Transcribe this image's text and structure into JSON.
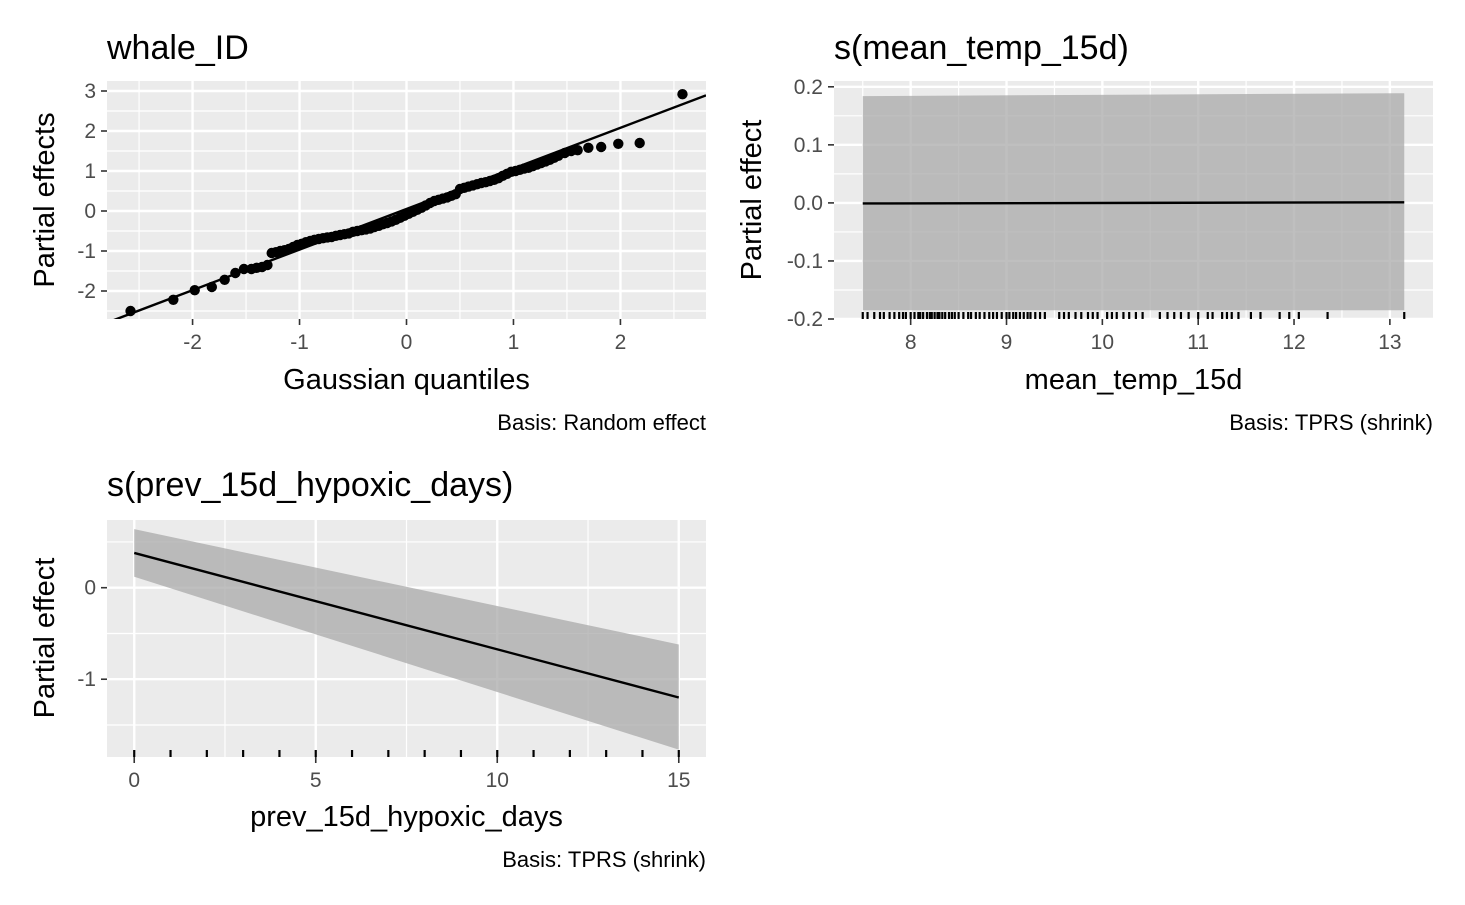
{
  "chart_data": [
    {
      "type": "scatter",
      "title": "whale_ID",
      "xlabel": "Gaussian quantiles",
      "ylabel": "Partial effects",
      "caption": "Basis: Random effect",
      "xlim": [
        -2.8,
        2.8
      ],
      "ylim": [
        -2.7,
        3.25
      ],
      "x_ticks": [
        -2,
        -1,
        0,
        1,
        2
      ],
      "x_tick_labels": [
        "-2",
        "-1",
        "0",
        "1",
        "2"
      ],
      "y_ticks": [
        -2,
        -1,
        0,
        1,
        2,
        3
      ],
      "y_tick_labels": [
        "-2",
        "-1",
        "0",
        "1",
        "2",
        "3"
      ],
      "grid": true,
      "reference_line": {
        "slope": 1.015,
        "intercept": 0.05
      },
      "points": [
        [
          -2.58,
          -2.5
        ],
        [
          -2.18,
          -2.22
        ],
        [
          -1.98,
          -1.98
        ],
        [
          -1.82,
          -1.9
        ],
        [
          -1.7,
          -1.72
        ],
        [
          -1.6,
          -1.55
        ],
        [
          -1.52,
          -1.45
        ],
        [
          -1.45,
          -1.45
        ],
        [
          -1.4,
          -1.42
        ],
        [
          -1.35,
          -1.4
        ],
        [
          -1.3,
          -1.35
        ],
        [
          -1.26,
          -1.05
        ],
        [
          -1.22,
          -1.03
        ],
        [
          -1.18,
          -1.0
        ],
        [
          -1.14,
          -0.98
        ],
        [
          -1.1,
          -0.95
        ],
        [
          -1.06,
          -0.9
        ],
        [
          -1.02,
          -0.85
        ],
        [
          -0.98,
          -0.82
        ],
        [
          -0.94,
          -0.78
        ],
        [
          -0.9,
          -0.75
        ],
        [
          -0.86,
          -0.72
        ],
        [
          -0.82,
          -0.7
        ],
        [
          -0.78,
          -0.68
        ],
        [
          -0.74,
          -0.66
        ],
        [
          -0.7,
          -0.65
        ],
        [
          -0.66,
          -0.62
        ],
        [
          -0.62,
          -0.6
        ],
        [
          -0.58,
          -0.58
        ],
        [
          -0.54,
          -0.56
        ],
        [
          -0.5,
          -0.52
        ],
        [
          -0.46,
          -0.5
        ],
        [
          -0.42,
          -0.48
        ],
        [
          -0.38,
          -0.46
        ],
        [
          -0.34,
          -0.44
        ],
        [
          -0.3,
          -0.4
        ],
        [
          -0.26,
          -0.37
        ],
        [
          -0.22,
          -0.33
        ],
        [
          -0.18,
          -0.3
        ],
        [
          -0.14,
          -0.26
        ],
        [
          -0.1,
          -0.22
        ],
        [
          -0.06,
          -0.17
        ],
        [
          -0.02,
          -0.12
        ],
        [
          0.02,
          -0.07
        ],
        [
          0.06,
          -0.02
        ],
        [
          0.1,
          0.03
        ],
        [
          0.14,
          0.08
        ],
        [
          0.18,
          0.14
        ],
        [
          0.22,
          0.2
        ],
        [
          0.26,
          0.25
        ],
        [
          0.3,
          0.28
        ],
        [
          0.34,
          0.31
        ],
        [
          0.38,
          0.34
        ],
        [
          0.42,
          0.38
        ],
        [
          0.46,
          0.42
        ],
        [
          0.5,
          0.55
        ],
        [
          0.54,
          0.58
        ],
        [
          0.58,
          0.61
        ],
        [
          0.62,
          0.64
        ],
        [
          0.66,
          0.67
        ],
        [
          0.7,
          0.7
        ],
        [
          0.74,
          0.72
        ],
        [
          0.78,
          0.75
        ],
        [
          0.82,
          0.78
        ],
        [
          0.86,
          0.82
        ],
        [
          0.9,
          0.88
        ],
        [
          0.94,
          0.93
        ],
        [
          0.98,
          0.98
        ],
        [
          1.02,
          1.0
        ],
        [
          1.06,
          1.03
        ],
        [
          1.1,
          1.06
        ],
        [
          1.14,
          1.08
        ],
        [
          1.18,
          1.12
        ],
        [
          1.22,
          1.16
        ],
        [
          1.26,
          1.2
        ],
        [
          1.3,
          1.24
        ],
        [
          1.34,
          1.28
        ],
        [
          1.38,
          1.33
        ],
        [
          1.42,
          1.38
        ],
        [
          1.48,
          1.45
        ],
        [
          1.54,
          1.5
        ],
        [
          1.6,
          1.52
        ],
        [
          1.7,
          1.58
        ],
        [
          1.82,
          1.6
        ],
        [
          1.98,
          1.68
        ],
        [
          2.18,
          1.7
        ],
        [
          2.58,
          2.92
        ]
      ]
    },
    {
      "type": "line",
      "title": "s(mean_temp_15d)",
      "xlabel": "mean_temp_15d",
      "ylabel": "Partial effect",
      "caption": "Basis: TPRS (shrink)",
      "xlim": [
        7.2,
        13.45
      ],
      "ylim": [
        -0.2,
        0.21
      ],
      "x_ticks": [
        8,
        9,
        10,
        11,
        12,
        13
      ],
      "x_tick_labels": [
        "8",
        "9",
        "10",
        "11",
        "12",
        "13"
      ],
      "y_ticks": [
        -0.2,
        -0.1,
        0.0,
        0.1,
        0.2
      ],
      "y_tick_labels": [
        "-0.2",
        "-0.1",
        "0.0",
        "0.1",
        "0.2"
      ],
      "grid": true,
      "x": [
        7.5,
        13.15
      ],
      "fit": [
        -0.001,
        0.001
      ],
      "lower": [
        -0.185,
        -0.185
      ],
      "upper": [
        0.184,
        0.189
      ],
      "rug": [
        7.5,
        7.55,
        7.62,
        7.68,
        7.72,
        7.78,
        7.83,
        7.88,
        7.92,
        7.95,
        8.0,
        8.04,
        8.08,
        8.1,
        8.13,
        8.17,
        8.2,
        8.22,
        8.25,
        8.28,
        8.3,
        8.33,
        8.36,
        8.4,
        8.43,
        8.46,
        8.5,
        8.55,
        8.6,
        8.63,
        8.68,
        8.72,
        8.77,
        8.82,
        8.86,
        8.9,
        8.95,
        9.0,
        9.03,
        9.07,
        9.1,
        9.14,
        9.18,
        9.22,
        9.25,
        9.3,
        9.35,
        9.4,
        9.55,
        9.6,
        9.65,
        9.72,
        9.78,
        9.85,
        9.9,
        9.95,
        10.05,
        10.1,
        10.15,
        10.22,
        10.28,
        10.35,
        10.42,
        10.6,
        10.68,
        10.75,
        10.82,
        10.9,
        11.0,
        11.1,
        11.15,
        11.25,
        11.3,
        11.35,
        11.42,
        11.55,
        11.65,
        11.85,
        11.95,
        12.05,
        12.35,
        13.15
      ]
    },
    {
      "type": "line",
      "title": "s(prev_15d_hypoxic_days)",
      "xlabel": "prev_15d_hypoxic_days",
      "ylabel": "Partial effect",
      "caption": "Basis: TPRS (shrink)",
      "xlim": [
        -0.75,
        15.75
      ],
      "ylim": [
        -1.85,
        0.74
      ],
      "x_ticks": [
        0,
        5,
        10,
        15
      ],
      "x_tick_labels": [
        "0",
        "5",
        "10",
        "15"
      ],
      "y_ticks": [
        -1,
        0
      ],
      "y_tick_labels": [
        "-1",
        "0"
      ],
      "grid": true,
      "x": [
        0,
        15
      ],
      "fit": [
        0.38,
        -1.2
      ],
      "lower": [
        0.12,
        -1.77
      ],
      "upper": [
        0.64,
        -0.62
      ],
      "rug": [
        0,
        1,
        2,
        3,
        4,
        5,
        6,
        7,
        8,
        9,
        10,
        11,
        12,
        13,
        14,
        15
      ]
    }
  ]
}
